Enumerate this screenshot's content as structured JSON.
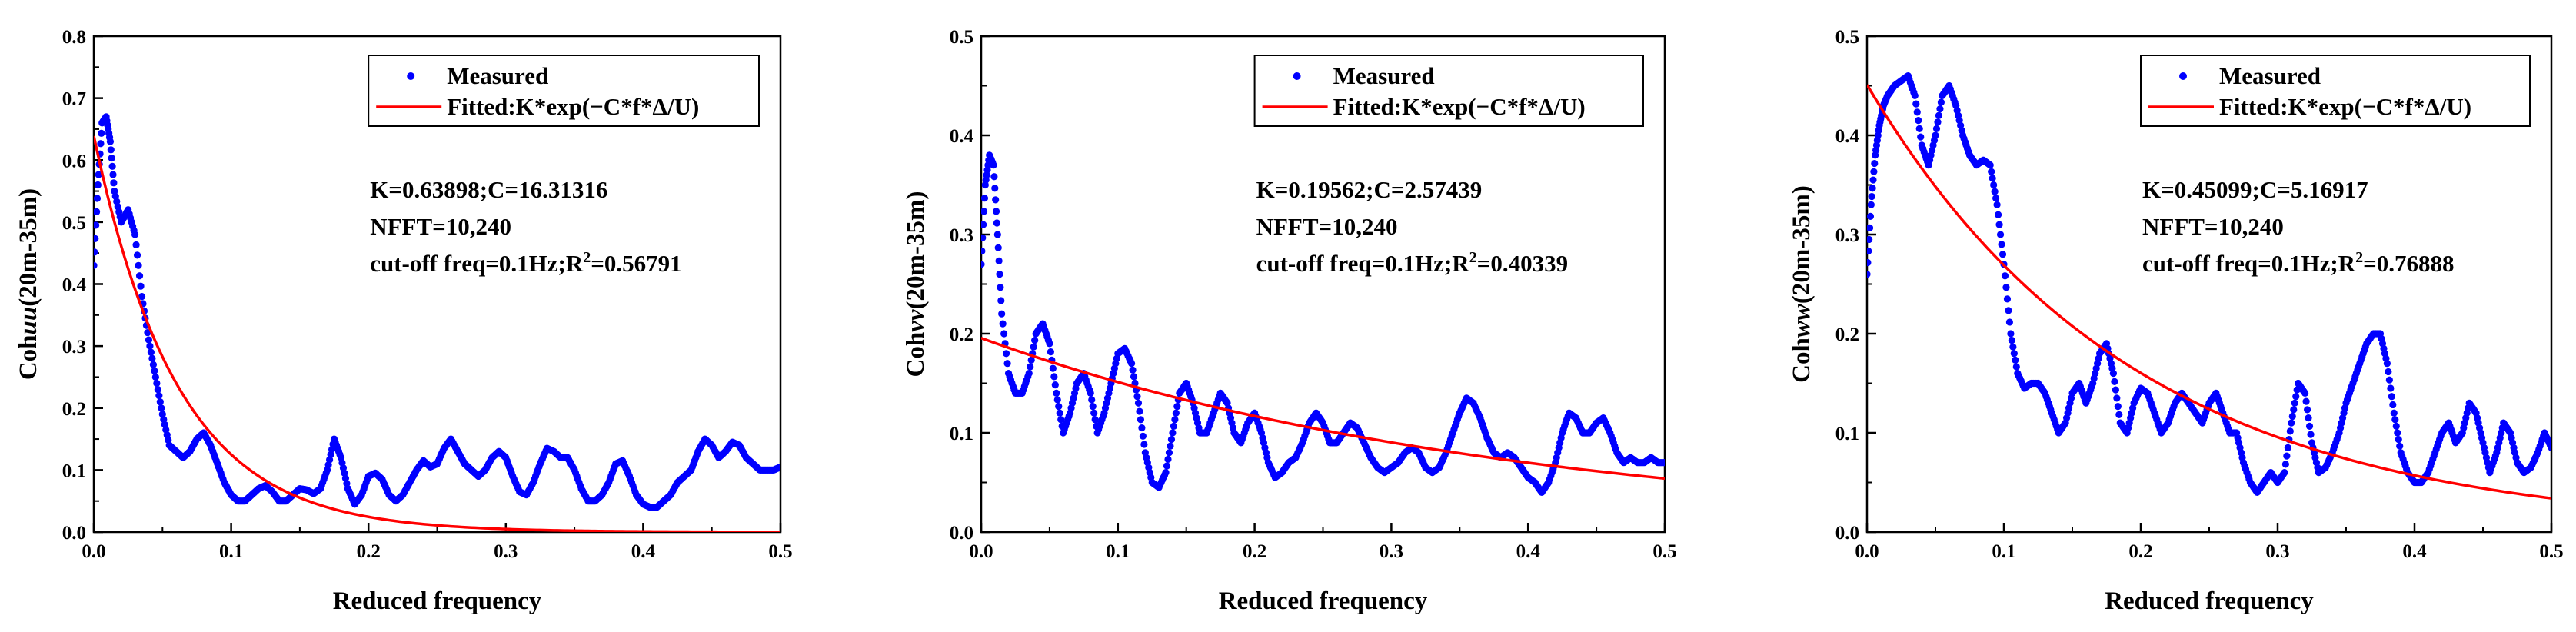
{
  "chart_data": [
    {
      "type": "scatter",
      "xlabel": "Reduced frequency",
      "ylabel_prefix": "Coh",
      "ylabel_var": "uu",
      "ylabel_suffix": "(20m-35m)",
      "xlim": [
        0,
        0.5
      ],
      "ylim": [
        0,
        0.8
      ],
      "xticks": [
        "0.0",
        "0.1",
        "0.2",
        "0.3",
        "0.4",
        "0.5"
      ],
      "yticks": [
        "0.0",
        "0.1",
        "0.2",
        "0.3",
        "0.4",
        "0.5",
        "0.6",
        "0.7",
        "0.8"
      ],
      "grid": false,
      "legend_position": "top-right",
      "legend": {
        "measured": "Measured",
        "fitted": "Fitted:K*exp(−C*f*Δ/U)"
      },
      "annotation": {
        "line1": "K=0.63898;C=16.31316",
        "line2": "NFFT=10,240",
        "line3_prefix": "cut-off freq=0.1Hz;R",
        "line3_sup": "2",
        "line3_suffix": "=0.56791"
      },
      "fit": {
        "K": 0.63898,
        "C": 16.31316
      },
      "series": [
        {
          "name": "Measured",
          "color": "#0000ff",
          "x": [
            0.0,
            0.003,
            0.006,
            0.009,
            0.012,
            0.015,
            0.02,
            0.025,
            0.03,
            0.035,
            0.04,
            0.045,
            0.05,
            0.055,
            0.06,
            0.065,
            0.07,
            0.075,
            0.08,
            0.085,
            0.09,
            0.095,
            0.1,
            0.105,
            0.11,
            0.115,
            0.12,
            0.125,
            0.13,
            0.135,
            0.14,
            0.145,
            0.15,
            0.155,
            0.16,
            0.165,
            0.17,
            0.175,
            0.18,
            0.185,
            0.19,
            0.195,
            0.2,
            0.205,
            0.21,
            0.215,
            0.22,
            0.225,
            0.23,
            0.235,
            0.24,
            0.245,
            0.25,
            0.255,
            0.26,
            0.265,
            0.27,
            0.275,
            0.28,
            0.285,
            0.29,
            0.295,
            0.3,
            0.305,
            0.31,
            0.315,
            0.32,
            0.325,
            0.33,
            0.335,
            0.34,
            0.345,
            0.35,
            0.355,
            0.36,
            0.365,
            0.37,
            0.375,
            0.38,
            0.385,
            0.39,
            0.395,
            0.4,
            0.405,
            0.41,
            0.415,
            0.42,
            0.425,
            0.43,
            0.435,
            0.44,
            0.445,
            0.45,
            0.455,
            0.46,
            0.465,
            0.47,
            0.475,
            0.48,
            0.485,
            0.49,
            0.495,
            0.5
          ],
          "values": [
            0.43,
            0.56,
            0.66,
            0.67,
            0.63,
            0.55,
            0.5,
            0.52,
            0.48,
            0.38,
            0.31,
            0.25,
            0.19,
            0.14,
            0.13,
            0.12,
            0.13,
            0.15,
            0.16,
            0.14,
            0.11,
            0.08,
            0.06,
            0.05,
            0.05,
            0.06,
            0.07,
            0.075,
            0.065,
            0.05,
            0.05,
            0.06,
            0.07,
            0.068,
            0.062,
            0.07,
            0.1,
            0.15,
            0.12,
            0.07,
            0.045,
            0.06,
            0.09,
            0.095,
            0.085,
            0.06,
            0.05,
            0.06,
            0.08,
            0.1,
            0.115,
            0.105,
            0.11,
            0.135,
            0.15,
            0.13,
            0.11,
            0.1,
            0.09,
            0.1,
            0.12,
            0.13,
            0.12,
            0.09,
            0.065,
            0.06,
            0.08,
            0.11,
            0.135,
            0.13,
            0.12,
            0.12,
            0.1,
            0.07,
            0.05,
            0.05,
            0.06,
            0.08,
            0.11,
            0.115,
            0.09,
            0.06,
            0.045,
            0.04,
            0.04,
            0.05,
            0.06,
            0.08,
            0.09,
            0.1,
            0.13,
            0.15,
            0.14,
            0.12,
            0.13,
            0.145,
            0.14,
            0.12,
            0.11,
            0.1,
            0.1,
            0.1,
            0.105
          ]
        }
      ]
    },
    {
      "type": "scatter",
      "xlabel": "Reduced frequency",
      "ylabel_prefix": "Coh",
      "ylabel_var": "vv",
      "ylabel_suffix": "(20m-35m)",
      "xlim": [
        0,
        0.5
      ],
      "ylim": [
        0,
        0.5
      ],
      "xticks": [
        "0.0",
        "0.1",
        "0.2",
        "0.3",
        "0.4",
        "0.5"
      ],
      "yticks": [
        "0.0",
        "0.1",
        "0.2",
        "0.3",
        "0.4",
        "0.5"
      ],
      "grid": false,
      "legend_position": "top-right",
      "legend": {
        "measured": "Measured",
        "fitted": "Fitted:K*exp(−C*f*Δ/U)"
      },
      "annotation": {
        "line1": "K=0.19562;C=2.57439",
        "line2": "NFFT=10,240",
        "line3_prefix": "cut-off freq=0.1Hz;R",
        "line3_sup": "2",
        "line3_suffix": "=0.40339"
      },
      "fit": {
        "K": 0.19562,
        "C": 2.57439
      },
      "series": [
        {
          "name": "Measured",
          "color": "#0000ff",
          "x": [
            0.0,
            0.003,
            0.006,
            0.009,
            0.012,
            0.015,
            0.02,
            0.025,
            0.03,
            0.035,
            0.04,
            0.045,
            0.05,
            0.055,
            0.06,
            0.065,
            0.07,
            0.075,
            0.08,
            0.085,
            0.09,
            0.095,
            0.1,
            0.105,
            0.11,
            0.115,
            0.12,
            0.125,
            0.13,
            0.135,
            0.14,
            0.145,
            0.15,
            0.155,
            0.16,
            0.165,
            0.17,
            0.175,
            0.18,
            0.185,
            0.19,
            0.195,
            0.2,
            0.205,
            0.21,
            0.215,
            0.22,
            0.225,
            0.23,
            0.235,
            0.24,
            0.245,
            0.25,
            0.255,
            0.26,
            0.265,
            0.27,
            0.275,
            0.28,
            0.285,
            0.29,
            0.295,
            0.3,
            0.305,
            0.31,
            0.315,
            0.32,
            0.325,
            0.33,
            0.335,
            0.34,
            0.345,
            0.35,
            0.355,
            0.36,
            0.365,
            0.37,
            0.375,
            0.38,
            0.385,
            0.39,
            0.395,
            0.4,
            0.405,
            0.41,
            0.415,
            0.42,
            0.425,
            0.43,
            0.435,
            0.44,
            0.445,
            0.45,
            0.455,
            0.46,
            0.465,
            0.47,
            0.475,
            0.48,
            0.485,
            0.49,
            0.495,
            0.5
          ],
          "values": [
            0.27,
            0.35,
            0.38,
            0.37,
            0.3,
            0.22,
            0.16,
            0.14,
            0.14,
            0.16,
            0.2,
            0.21,
            0.19,
            0.14,
            0.1,
            0.12,
            0.15,
            0.16,
            0.14,
            0.1,
            0.12,
            0.15,
            0.18,
            0.185,
            0.17,
            0.13,
            0.08,
            0.05,
            0.045,
            0.06,
            0.1,
            0.14,
            0.15,
            0.13,
            0.1,
            0.1,
            0.12,
            0.14,
            0.13,
            0.1,
            0.09,
            0.11,
            0.12,
            0.1,
            0.07,
            0.055,
            0.06,
            0.07,
            0.075,
            0.09,
            0.11,
            0.12,
            0.11,
            0.09,
            0.09,
            0.1,
            0.11,
            0.105,
            0.09,
            0.075,
            0.065,
            0.06,
            0.065,
            0.07,
            0.08,
            0.085,
            0.08,
            0.065,
            0.06,
            0.065,
            0.08,
            0.1,
            0.12,
            0.135,
            0.13,
            0.115,
            0.095,
            0.08,
            0.075,
            0.08,
            0.075,
            0.065,
            0.055,
            0.05,
            0.04,
            0.05,
            0.07,
            0.1,
            0.12,
            0.115,
            0.1,
            0.1,
            0.11,
            0.115,
            0.1,
            0.08,
            0.07,
            0.075,
            0.07,
            0.07,
            0.075,
            0.07,
            0.07
          ]
        }
      ]
    },
    {
      "type": "scatter",
      "xlabel": "Reduced frequency",
      "ylabel_prefix": "Coh",
      "ylabel_var": "ww",
      "ylabel_suffix": "(20m-35m)",
      "xlim": [
        0,
        0.5
      ],
      "ylim": [
        0,
        0.5
      ],
      "xticks": [
        "0.0",
        "0.1",
        "0.2",
        "0.3",
        "0.4",
        "0.5"
      ],
      "yticks": [
        "0.0",
        "0.1",
        "0.2",
        "0.3",
        "0.4",
        "0.5"
      ],
      "grid": false,
      "legend_position": "top-right",
      "legend": {
        "measured": "Measured",
        "fitted": "Fitted:K*exp(−C*f*Δ/U)"
      },
      "annotation": {
        "line1": "K=0.45099;C=5.16917",
        "line2": "NFFT=10,240",
        "line3_prefix": "cut-off freq=0.1Hz;R",
        "line3_sup": "2",
        "line3_suffix": "=0.76888"
      },
      "fit": {
        "K": 0.45099,
        "C": 5.16917
      },
      "series": [
        {
          "name": "Measured",
          "color": "#0000ff",
          "x": [
            0.0,
            0.003,
            0.006,
            0.009,
            0.012,
            0.015,
            0.02,
            0.025,
            0.03,
            0.035,
            0.04,
            0.045,
            0.05,
            0.055,
            0.06,
            0.065,
            0.07,
            0.075,
            0.08,
            0.085,
            0.09,
            0.095,
            0.1,
            0.105,
            0.11,
            0.115,
            0.12,
            0.125,
            0.13,
            0.135,
            0.14,
            0.145,
            0.15,
            0.155,
            0.16,
            0.165,
            0.17,
            0.175,
            0.18,
            0.185,
            0.19,
            0.195,
            0.2,
            0.205,
            0.21,
            0.215,
            0.22,
            0.225,
            0.23,
            0.235,
            0.24,
            0.245,
            0.25,
            0.255,
            0.26,
            0.265,
            0.27,
            0.275,
            0.28,
            0.285,
            0.29,
            0.295,
            0.3,
            0.305,
            0.31,
            0.315,
            0.32,
            0.325,
            0.33,
            0.335,
            0.34,
            0.345,
            0.35,
            0.355,
            0.36,
            0.365,
            0.37,
            0.375,
            0.38,
            0.385,
            0.39,
            0.395,
            0.4,
            0.405,
            0.41,
            0.415,
            0.42,
            0.425,
            0.43,
            0.435,
            0.44,
            0.445,
            0.45,
            0.455,
            0.46,
            0.465,
            0.47,
            0.475,
            0.48,
            0.485,
            0.49,
            0.495,
            0.5
          ],
          "values": [
            0.26,
            0.33,
            0.38,
            0.41,
            0.43,
            0.44,
            0.45,
            0.455,
            0.46,
            0.44,
            0.39,
            0.37,
            0.4,
            0.44,
            0.45,
            0.43,
            0.4,
            0.38,
            0.37,
            0.375,
            0.37,
            0.33,
            0.27,
            0.2,
            0.16,
            0.145,
            0.15,
            0.15,
            0.14,
            0.12,
            0.1,
            0.11,
            0.14,
            0.15,
            0.13,
            0.15,
            0.18,
            0.19,
            0.16,
            0.11,
            0.1,
            0.13,
            0.145,
            0.14,
            0.12,
            0.1,
            0.11,
            0.13,
            0.14,
            0.13,
            0.12,
            0.11,
            0.13,
            0.14,
            0.12,
            0.1,
            0.1,
            0.07,
            0.05,
            0.04,
            0.05,
            0.06,
            0.05,
            0.06,
            0.11,
            0.15,
            0.14,
            0.09,
            0.06,
            0.065,
            0.08,
            0.1,
            0.13,
            0.15,
            0.17,
            0.19,
            0.2,
            0.2,
            0.17,
            0.12,
            0.08,
            0.06,
            0.05,
            0.05,
            0.06,
            0.08,
            0.1,
            0.11,
            0.09,
            0.1,
            0.13,
            0.12,
            0.09,
            0.06,
            0.08,
            0.11,
            0.1,
            0.07,
            0.06,
            0.065,
            0.08,
            0.1,
            0.085
          ]
        }
      ]
    }
  ]
}
